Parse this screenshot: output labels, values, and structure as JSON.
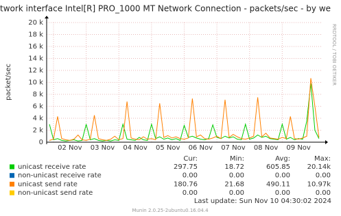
{
  "chart_data": {
    "type": "line",
    "title": "twork interface Intel[R] PRO_1000 MT Network Connection - packets/sec - by we",
    "ylabel": "packet/sec",
    "side_text": "RRDTOOL / TOBI OETIKER",
    "x": [
      1.875,
      2,
      2.125,
      2.25,
      2.375,
      2.5,
      2.625,
      2.75,
      2.875,
      3,
      3.125,
      3.25,
      3.375,
      3.5,
      3.625,
      3.75,
      3.875,
      4,
      4.125,
      4.25,
      4.375,
      4.5,
      4.625,
      4.75,
      4.875,
      5,
      5.125,
      5.25,
      5.375,
      5.5,
      5.625,
      5.75,
      5.875,
      6,
      6.125,
      6.25,
      6.375,
      6.5,
      6.625,
      6.75,
      6.875,
      7,
      7.125,
      7.25,
      7.375,
      7.5,
      7.625,
      7.75,
      7.875,
      8,
      8.125,
      8.25,
      8.375,
      8.5,
      8.625,
      8.75,
      8.875,
      9,
      9.125,
      9.25,
      9.375,
      9.5,
      9.625,
      9.75,
      9.875,
      10,
      10.125
    ],
    "xlim": [
      1.79,
      10.19
    ],
    "xticks": [
      {
        "value": 2,
        "label": "02 Nov"
      },
      {
        "value": 3,
        "label": "03 Nov"
      },
      {
        "value": 4,
        "label": "04 Nov"
      },
      {
        "value": 5,
        "label": "05 Nov"
      },
      {
        "value": 6,
        "label": "06 Nov"
      },
      {
        "value": 7,
        "label": "07 Nov"
      },
      {
        "value": 8,
        "label": "08 Nov"
      },
      {
        "value": 9,
        "label": "09 Nov"
      }
    ],
    "ylim": [
      0,
      20000
    ],
    "yticks": [
      0,
      {
        "value": 2000,
        "label": "2 k"
      },
      {
        "value": 4000,
        "label": "4 k"
      },
      {
        "value": 6000,
        "label": "6 k"
      },
      {
        "value": 8000,
        "label": "8 k"
      },
      {
        "value": 10000,
        "label": "10 k"
      },
      {
        "value": 12000,
        "label": "12 k"
      },
      {
        "value": 14000,
        "label": "14 k"
      },
      {
        "value": 16000,
        "label": "16 k"
      },
      {
        "value": 18000,
        "label": "18 k"
      },
      {
        "value": 20000,
        "label": "20 k"
      }
    ],
    "grid": true,
    "stat_headers": [
      "Cur:",
      "Min:",
      "Avg:",
      "Max:"
    ],
    "series": [
      {
        "name": "unicast receive rate",
        "color": "#00cc00",
        "values": [
          3000,
          400,
          600,
          300,
          200,
          300,
          400,
          200,
          300,
          3000,
          400,
          600,
          300,
          200,
          300,
          200,
          400,
          300,
          3000,
          500,
          400,
          300,
          800,
          400,
          300,
          3000,
          600,
          900,
          500,
          700,
          400,
          600,
          300,
          2800,
          800,
          1000,
          700,
          500,
          400,
          600,
          2900,
          800,
          600,
          1000,
          700,
          900,
          500,
          400,
          3000,
          500,
          700,
          1200,
          800,
          1000,
          600,
          500,
          400,
          3000,
          500,
          800,
          400,
          600,
          500,
          3500,
          9800,
          2000,
          600
        ],
        "stats": [
          297.75,
          18.72,
          605.85,
          {
            "value": 20140,
            "label": "20.14k"
          }
        ]
      },
      {
        "name": "non-unicast receive rate",
        "color": "#0066b3",
        "values": [
          0,
          0,
          0,
          0,
          0,
          0,
          0,
          0,
          0,
          0,
          0,
          0,
          0,
          0,
          0,
          0,
          0,
          0,
          0,
          0,
          0,
          0,
          0,
          0,
          0,
          0,
          0,
          0,
          0,
          0,
          0,
          0,
          0,
          0,
          0,
          0,
          0,
          0,
          0,
          0,
          0,
          0,
          0,
          0,
          0,
          0,
          0,
          0,
          0,
          0,
          0,
          0,
          0,
          0,
          0,
          0,
          0,
          0,
          0,
          0,
          0,
          0,
          0,
          0,
          0,
          0,
          0
        ],
        "stats": [
          {
            "value": 0,
            "label": "0.00"
          },
          {
            "value": 0,
            "label": "0.00"
          },
          {
            "value": 0,
            "label": "0.00"
          },
          {
            "value": 0,
            "label": "0.00"
          }
        ]
      },
      {
        "name": "unicast send rate",
        "color": "#ff8000",
        "values": [
          300,
          500,
          4300,
          600,
          400,
          300,
          500,
          1200,
          400,
          300,
          500,
          4500,
          600,
          400,
          300,
          500,
          1000,
          400,
          600,
          6800,
          700,
          500,
          400,
          900,
          500,
          600,
          400,
          6500,
          800,
          1100,
          700,
          900,
          600,
          500,
          700,
          7300,
          900,
          1200,
          600,
          500,
          700,
          1000,
          600,
          7100,
          800,
          1300,
          900,
          600,
          500,
          700,
          1000,
          7500,
          900,
          1500,
          700,
          600,
          500,
          800,
          600,
          4300,
          600,
          500,
          700,
          1000,
          10700,
          6000,
          800
        ],
        "stats": [
          180.76,
          21.68,
          490.11,
          {
            "value": 10970,
            "label": "10.97k"
          }
        ]
      },
      {
        "name": "non-unicast send rate",
        "color": "#ffcc00",
        "values": [
          0,
          0,
          0,
          0,
          0,
          0,
          0,
          0,
          0,
          0,
          0,
          0,
          0,
          0,
          0,
          0,
          0,
          0,
          0,
          0,
          0,
          0,
          0,
          0,
          0,
          0,
          0,
          0,
          0,
          0,
          0,
          0,
          0,
          0,
          0,
          0,
          0,
          0,
          0,
          0,
          0,
          0,
          0,
          0,
          0,
          0,
          0,
          0,
          0,
          0,
          0,
          0,
          0,
          0,
          0,
          0,
          0,
          0,
          0,
          0,
          0,
          0,
          0,
          0,
          0,
          0,
          0
        ],
        "stats": [
          {
            "value": 0,
            "label": "0.00"
          },
          {
            "value": 0,
            "label": "0.00"
          },
          {
            "value": 0,
            "label": "0.00"
          },
          {
            "value": 0,
            "label": "0.00"
          }
        ]
      }
    ],
    "last_update": "Last update:  Sun Nov 10 04:30:02 2024",
    "footer": "Munin 2.0.25-2ubuntu0.16.04.4"
  }
}
